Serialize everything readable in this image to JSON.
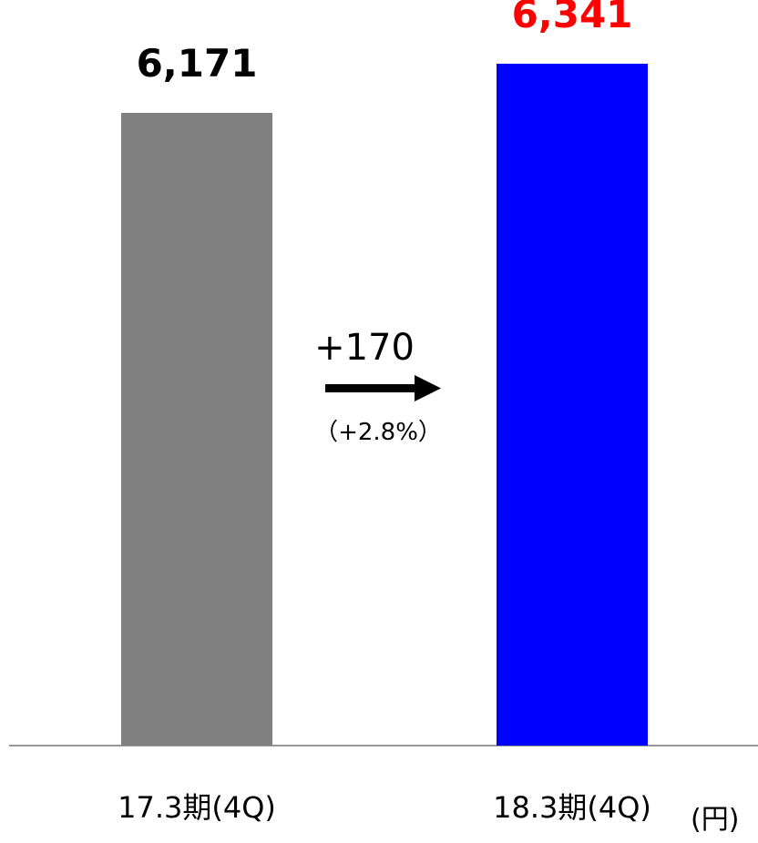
{
  "chart_data": {
    "type": "bar",
    "categories": [
      "17.3期(4Q)",
      "18.3期(4Q)"
    ],
    "values": [
      6171,
      6341
    ],
    "value_labels": [
      "6,171",
      "6,341"
    ],
    "bar_colors": [
      "#808080",
      "#0000ff"
    ],
    "value_label_colors": [
      "#000000",
      "#ff0000"
    ],
    "unit": "(円)",
    "change": {
      "amount": "+170",
      "percent": "（+2.8%）"
    },
    "title": "",
    "xlabel": "",
    "ylabel": "",
    "grid": false,
    "axis_color": "#999999"
  }
}
